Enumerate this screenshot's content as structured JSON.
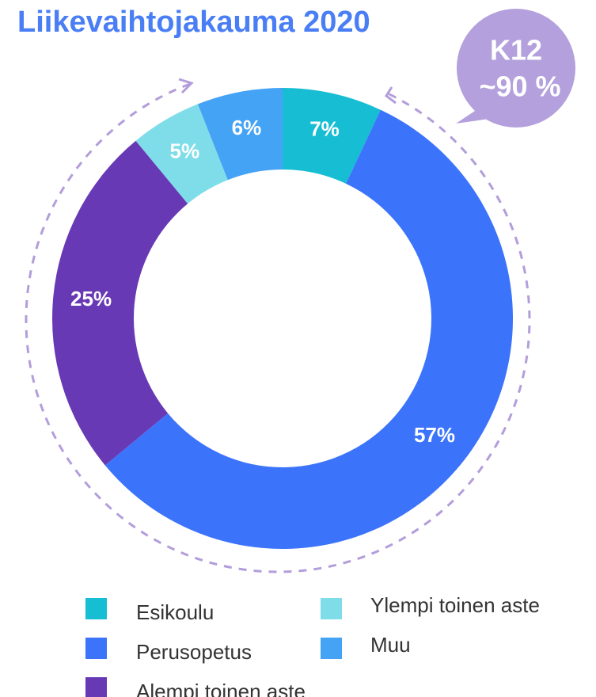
{
  "chart_data": {
    "type": "donut",
    "title": "Liikevaihtojakauma 2020",
    "categories": [
      "Esikoulu",
      "Perusopetus",
      "Alempi toinen aste",
      "Ylempi toinen aste",
      "Muu"
    ],
    "values": [
      7,
      57,
      25,
      5,
      6
    ],
    "value_labels": [
      "7%",
      "57%",
      "25%",
      "5%",
      "6%"
    ],
    "colors": [
      "#17bdd3",
      "#3b73fb",
      "#6839b5",
      "#7fdde9",
      "#45a3f6"
    ],
    "annotations": [
      "K12",
      "~90 %"
    ]
  }
}
